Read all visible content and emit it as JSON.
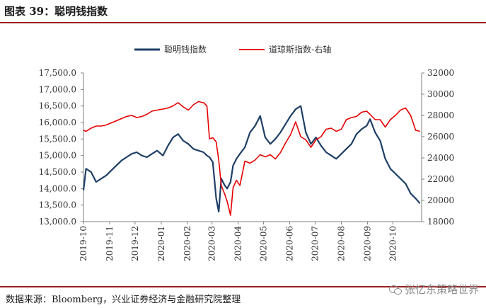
{
  "header": {
    "title": "图表 39：聪明钱指数"
  },
  "footer": {
    "source": "数据来源：Bloomberg，兴业证券经济与金融研究院整理",
    "watermark": "张忆东策略世界"
  },
  "watermark_icon": "wechat-icon",
  "chart_data": {
    "type": "line",
    "title": "",
    "legend_position": "top-center",
    "grid": false,
    "x_tick_labels": [
      "2019-10",
      "2019-11",
      "2019-12",
      "2020-01",
      "2020-02",
      "2020-03",
      "2020-04",
      "2020-05",
      "2020-06",
      "2020-07",
      "2020-08",
      "2020-09",
      "2020-10"
    ],
    "y_left": {
      "min": 13000,
      "max": 17500,
      "tick_values": [
        13000,
        13500,
        14000,
        14500,
        15000,
        15500,
        16000,
        16500,
        17000,
        17500
      ],
      "tick_labels": [
        "13,000.0",
        "13,500.0",
        "14,000.0",
        "14,500.0",
        "15,000.0",
        "15,500.0",
        "16,000.0",
        "16,500.0",
        "17,000.0",
        "17,500.0"
      ]
    },
    "y_right": {
      "min": 18000,
      "max": 32000,
      "tick_values": [
        18000,
        20000,
        22000,
        24000,
        26000,
        28000,
        30000,
        32000
      ],
      "tick_labels": [
        "18000",
        "20000",
        "22000",
        "24000",
        "26000",
        "28000",
        "30000",
        "32000"
      ]
    },
    "series": [
      {
        "name": "聪明钱指数",
        "axis": "left",
        "color": "#1f3f66",
        "x": [
          "2019-10-01",
          "2019-10-04",
          "2019-10-10",
          "2019-10-16",
          "2019-10-22",
          "2019-10-28",
          "2019-11-03",
          "2019-11-09",
          "2019-11-15",
          "2019-11-21",
          "2019-11-27",
          "2019-12-03",
          "2019-12-09",
          "2019-12-15",
          "2019-12-21",
          "2019-12-27",
          "2020-01-03",
          "2020-01-09",
          "2020-01-15",
          "2020-01-21",
          "2020-01-27",
          "2020-02-02",
          "2020-02-08",
          "2020-02-14",
          "2020-02-20",
          "2020-02-24",
          "2020-02-27",
          "2020-03-02",
          "2020-03-06",
          "2020-03-09",
          "2020-03-12",
          "2020-03-16",
          "2020-03-19",
          "2020-03-23",
          "2020-03-26",
          "2020-03-30",
          "2020-04-03",
          "2020-04-09",
          "2020-04-15",
          "2020-04-21",
          "2020-04-27",
          "2020-05-03",
          "2020-05-09",
          "2020-05-15",
          "2020-05-21",
          "2020-05-27",
          "2020-06-02",
          "2020-06-08",
          "2020-06-14",
          "2020-06-20",
          "2020-06-26",
          "2020-07-02",
          "2020-07-08",
          "2020-07-14",
          "2020-07-20",
          "2020-07-26",
          "2020-08-01",
          "2020-08-07",
          "2020-08-13",
          "2020-08-19",
          "2020-08-25",
          "2020-08-31",
          "2020-09-04",
          "2020-09-10",
          "2020-09-16",
          "2020-09-22",
          "2020-09-28",
          "2020-10-04",
          "2020-10-10",
          "2020-10-16",
          "2020-10-22",
          "2020-10-28",
          "2020-11-02"
        ],
        "values": [
          13950,
          14600,
          14500,
          14200,
          14300,
          14400,
          14550,
          14700,
          14850,
          14950,
          15050,
          15100,
          15000,
          14950,
          15050,
          15150,
          15000,
          15300,
          15550,
          15650,
          15450,
          15350,
          15200,
          15150,
          15100,
          15000,
          14950,
          14800,
          13700,
          13300,
          14300,
          14100,
          14000,
          14200,
          14700,
          14900,
          15050,
          15250,
          15700,
          15900,
          16200,
          15550,
          15350,
          15500,
          15700,
          15950,
          16200,
          16400,
          16500,
          15700,
          15350,
          15550,
          15300,
          15100,
          15000,
          14900,
          15050,
          15200,
          15350,
          15650,
          15800,
          15900,
          16100,
          15700,
          15450,
          14900,
          14600,
          14450,
          14300,
          14150,
          13850,
          13700,
          13550
        ]
      },
      {
        "name": "道琼斯指数-右轴",
        "axis": "right",
        "color": "#e60000",
        "x": [
          "2019-10-01",
          "2019-10-04",
          "2019-10-10",
          "2019-10-16",
          "2019-10-22",
          "2019-10-28",
          "2019-11-03",
          "2019-11-09",
          "2019-11-15",
          "2019-11-21",
          "2019-11-27",
          "2019-12-03",
          "2019-12-09",
          "2019-12-15",
          "2019-12-21",
          "2019-12-27",
          "2020-01-03",
          "2020-01-09",
          "2020-01-15",
          "2020-01-21",
          "2020-01-27",
          "2020-02-02",
          "2020-02-08",
          "2020-02-14",
          "2020-02-20",
          "2020-02-24",
          "2020-02-27",
          "2020-03-02",
          "2020-03-06",
          "2020-03-09",
          "2020-03-12",
          "2020-03-16",
          "2020-03-19",
          "2020-03-23",
          "2020-03-26",
          "2020-03-30",
          "2020-04-03",
          "2020-04-09",
          "2020-04-15",
          "2020-04-21",
          "2020-04-27",
          "2020-05-03",
          "2020-05-09",
          "2020-05-15",
          "2020-05-21",
          "2020-05-27",
          "2020-06-02",
          "2020-06-08",
          "2020-06-14",
          "2020-06-20",
          "2020-06-26",
          "2020-07-02",
          "2020-07-08",
          "2020-07-14",
          "2020-07-20",
          "2020-07-26",
          "2020-08-01",
          "2020-08-07",
          "2020-08-13",
          "2020-08-19",
          "2020-08-25",
          "2020-08-31",
          "2020-09-04",
          "2020-09-10",
          "2020-09-16",
          "2020-09-22",
          "2020-09-28",
          "2020-10-04",
          "2020-10-10",
          "2020-10-16",
          "2020-10-22",
          "2020-10-28",
          "2020-11-02"
        ],
        "values": [
          26600,
          26500,
          26800,
          27000,
          27000,
          27100,
          27300,
          27500,
          27700,
          27900,
          28000,
          27800,
          27900,
          28100,
          28400,
          28500,
          28600,
          28700,
          28900,
          29200,
          28800,
          28500,
          29000,
          29300,
          29200,
          28900,
          25800,
          25900,
          25500,
          23800,
          21400,
          20600,
          19900,
          18600,
          21200,
          21900,
          21400,
          23700,
          23500,
          23800,
          24300,
          24100,
          24300,
          23900,
          24500,
          25400,
          26200,
          27400,
          26000,
          25700,
          25000,
          25700,
          26000,
          26700,
          26800,
          26500,
          26700,
          27600,
          27800,
          27900,
          28300,
          28400,
          28100,
          27600,
          27600,
          26900,
          27600,
          28000,
          28500,
          28700,
          28000,
          26600,
          26500
        ]
      }
    ]
  }
}
